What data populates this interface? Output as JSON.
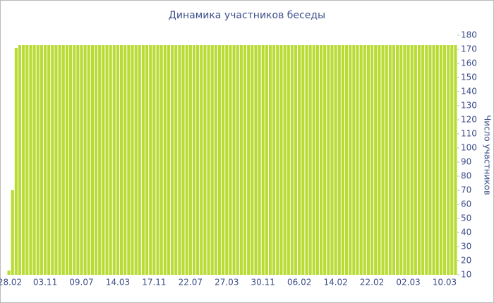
{
  "chart_data": {
    "type": "bar",
    "title": "Динамика участников беседы",
    "y_axis_label": "Число участников",
    "categories": [
      "28.02",
      null,
      null,
      null,
      null,
      null,
      null,
      null,
      null,
      null,
      "03.11",
      null,
      null,
      null,
      null,
      null,
      null,
      null,
      null,
      null,
      "09.07",
      null,
      null,
      null,
      null,
      null,
      null,
      null,
      null,
      null,
      "14.03",
      null,
      null,
      null,
      null,
      null,
      null,
      null,
      null,
      null,
      "17.11",
      null,
      null,
      null,
      null,
      null,
      null,
      null,
      null,
      null,
      "22.07",
      null,
      null,
      null,
      null,
      null,
      null,
      null,
      null,
      null,
      "27.03",
      null,
      null,
      null,
      null,
      null,
      null,
      null,
      null,
      null,
      "30.11",
      null,
      null,
      null,
      null,
      null,
      null,
      null,
      null,
      null,
      "06.02",
      null,
      null,
      null,
      null,
      null,
      null,
      null,
      null,
      null,
      "14.02",
      null,
      null,
      null,
      null,
      null,
      null,
      null,
      null,
      null,
      "22.02",
      null,
      null,
      null,
      null,
      null,
      null,
      null,
      null,
      null,
      "02.03",
      null,
      null,
      null,
      null,
      null,
      null,
      null,
      null,
      null,
      "10.03",
      null,
      null,
      null
    ],
    "values": [
      13,
      70,
      171,
      173,
      173,
      173,
      173,
      173,
      173,
      173,
      173,
      173,
      173,
      173,
      173,
      173,
      173,
      173,
      173,
      173,
      173,
      173,
      173,
      173,
      173,
      173,
      173,
      173,
      173,
      173,
      173,
      173,
      173,
      173,
      173,
      173,
      173,
      173,
      173,
      173,
      173,
      173,
      173,
      173,
      173,
      173,
      173,
      173,
      173,
      173,
      173,
      173,
      173,
      173,
      173,
      173,
      173,
      173,
      173,
      173,
      173,
      173,
      173,
      173,
      173,
      173,
      173,
      173,
      173,
      173,
      173,
      173,
      173,
      173,
      173,
      173,
      173,
      173,
      173,
      173,
      173,
      173,
      173,
      173,
      173,
      173,
      173,
      173,
      173,
      173,
      173,
      173,
      173,
      173,
      173,
      173,
      173,
      173,
      173,
      173,
      173,
      173,
      173,
      173,
      173,
      173,
      173,
      173,
      173,
      173,
      173,
      173,
      173,
      173,
      173,
      173,
      173,
      173,
      173,
      173,
      173,
      173,
      173,
      173
    ],
    "color": "#b8dc35",
    "ylim": [
      10,
      180
    ],
    "yticks": [
      10,
      20,
      30,
      40,
      50,
      60,
      70,
      80,
      90,
      100,
      110,
      120,
      130,
      140,
      150,
      160,
      170,
      180
    ],
    "grid": false
  }
}
